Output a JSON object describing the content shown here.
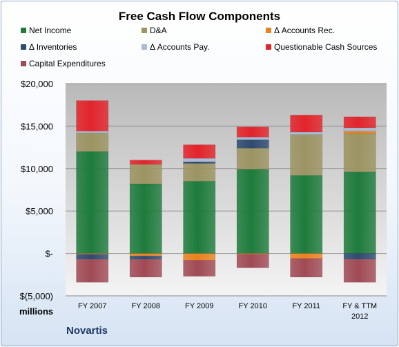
{
  "chart_data": {
    "type": "bar",
    "stacked": true,
    "title": "Free Cash Flow Components",
    "company": "Novartis",
    "units_label": "millions",
    "categories": [
      "FY 2007",
      "FY 2008",
      "FY 2009",
      "FY 2010",
      "FY 2011",
      [
        "FY & TTM",
        "2012"
      ]
    ],
    "ylim": [
      -5000,
      20000
    ],
    "yticks": [
      {
        "value": 20000,
        "label": "$20,000"
      },
      {
        "value": 15000,
        "label": "$15,000"
      },
      {
        "value": 10000,
        "label": "$10,000"
      },
      {
        "value": 5000,
        "label": "$5,000"
      },
      {
        "value": 0,
        "label": "$-"
      },
      {
        "value": -5000,
        "label": "$(5,000)"
      }
    ],
    "grid": true,
    "legend_position": "top",
    "series": [
      {
        "name": "Net Income",
        "color": "#1e7b3c",
        "values": [
          12000,
          8200,
          8500,
          9900,
          9200,
          9600
        ]
      },
      {
        "name": "D&A",
        "color": "#9c9462",
        "values": [
          2200,
          2300,
          2100,
          2500,
          4800,
          4500
        ]
      },
      {
        "name": "Δ Accounts Rec.",
        "color": "#e8821e",
        "values": [
          -100,
          -300,
          -800,
          -100,
          -600,
          300
        ]
      },
      {
        "name": "Δ Inventories",
        "color": "#2e4a70",
        "values": [
          -600,
          -400,
          200,
          1000,
          0,
          -700
        ]
      },
      {
        "name": "Δ Accounts Pay.",
        "color": "#a9b9d6",
        "values": [
          200,
          0,
          400,
          300,
          300,
          400
        ]
      },
      {
        "name": "Questionable Cash Sources",
        "color": "#e2242b",
        "values": [
          3600,
          500,
          1600,
          1200,
          2000,
          1300
        ]
      },
      {
        "name": "Capital Expenditures",
        "color": "#a04a54",
        "values": [
          -2700,
          -2100,
          -1900,
          -1600,
          -2200,
          -2700
        ]
      }
    ]
  }
}
